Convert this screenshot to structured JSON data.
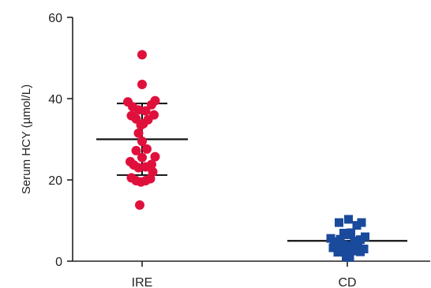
{
  "chart_data": {
    "type": "scatter",
    "ylabel": "Serum HCY (µmol/L)",
    "ylim": [
      0,
      60
    ],
    "yticks": [
      0,
      20,
      40,
      60
    ],
    "categories": [
      "IRE",
      "CD"
    ],
    "series": [
      {
        "color": "#e0103c",
        "marker": "circle",
        "mean": 30.0,
        "sd_low": 21.2,
        "sd_high": 38.8,
        "points": [
          {
            "x": 0.0,
            "y": 50.8
          },
          {
            "x": 0.0,
            "y": 43.5
          },
          {
            "x": -0.6,
            "y": 39.2
          },
          {
            "x": 0.55,
            "y": 39.5
          },
          {
            "x": -0.4,
            "y": 38.0
          },
          {
            "x": -0.15,
            "y": 37.2
          },
          {
            "x": 0.15,
            "y": 37.0
          },
          {
            "x": 0.4,
            "y": 38.5
          },
          {
            "x": -0.45,
            "y": 35.8
          },
          {
            "x": 0.5,
            "y": 36.0
          },
          {
            "x": -0.25,
            "y": 35.0
          },
          {
            "x": 0.25,
            "y": 34.8
          },
          {
            "x": -0.05,
            "y": 33.5
          },
          {
            "x": 0.05,
            "y": 33.8
          },
          {
            "x": -0.15,
            "y": 31.5
          },
          {
            "x": 0.0,
            "y": 29.5
          },
          {
            "x": -0.25,
            "y": 27.2
          },
          {
            "x": 0.2,
            "y": 27.6
          },
          {
            "x": 0.0,
            "y": 25.5
          },
          {
            "x": -0.5,
            "y": 24.5
          },
          {
            "x": -0.35,
            "y": 23.7
          },
          {
            "x": 0.55,
            "y": 25.7
          },
          {
            "x": 0.4,
            "y": 23.8
          },
          {
            "x": -0.15,
            "y": 23.0
          },
          {
            "x": 0.15,
            "y": 23.2
          },
          {
            "x": 0.45,
            "y": 22.0
          },
          {
            "x": -0.45,
            "y": 20.5
          },
          {
            "x": -0.25,
            "y": 19.8
          },
          {
            "x": -0.05,
            "y": 19.5
          },
          {
            "x": 0.15,
            "y": 19.8
          },
          {
            "x": 0.35,
            "y": 20.3
          },
          {
            "x": -0.1,
            "y": 13.8
          }
        ]
      },
      {
        "color": "#1a4a9c",
        "marker": "square",
        "mean": 5.0,
        "sd_low": 5.0,
        "sd_high": 5.0,
        "points": [
          {
            "x": -0.35,
            "y": 9.5
          },
          {
            "x": 0.05,
            "y": 10.3
          },
          {
            "x": 0.4,
            "y": 8.8
          },
          {
            "x": 0.6,
            "y": 9.5
          },
          {
            "x": -0.15,
            "y": 6.9
          },
          {
            "x": 0.0,
            "y": 6.5
          },
          {
            "x": 0.15,
            "y": 7.0
          },
          {
            "x": -0.7,
            "y": 5.6
          },
          {
            "x": -0.55,
            "y": 4.8
          },
          {
            "x": -0.3,
            "y": 5.4
          },
          {
            "x": 0.3,
            "y": 5.0
          },
          {
            "x": 0.55,
            "y": 5.3
          },
          {
            "x": 0.75,
            "y": 6.0
          },
          {
            "x": -0.6,
            "y": 3.3
          },
          {
            "x": -0.45,
            "y": 3.5
          },
          {
            "x": -0.3,
            "y": 3.9
          },
          {
            "x": -0.15,
            "y": 4.0
          },
          {
            "x": 0.05,
            "y": 3.8
          },
          {
            "x": 0.2,
            "y": 3.5
          },
          {
            "x": 0.45,
            "y": 3.9
          },
          {
            "x": 0.7,
            "y": 3.0
          },
          {
            "x": -0.4,
            "y": 2.2
          },
          {
            "x": -0.2,
            "y": 2.6
          },
          {
            "x": 0.0,
            "y": 2.5
          },
          {
            "x": 0.35,
            "y": 2.5
          },
          {
            "x": 0.55,
            "y": 2.3
          },
          {
            "x": -0.05,
            "y": 1.1
          },
          {
            "x": 0.1,
            "y": 0.9
          }
        ]
      }
    ],
    "grid": false,
    "legend": "none"
  }
}
